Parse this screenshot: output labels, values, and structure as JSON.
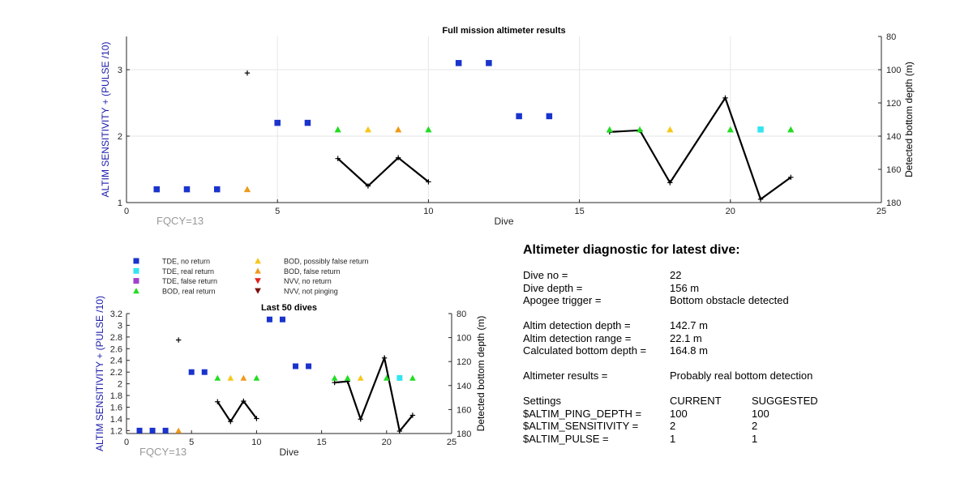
{
  "colors": {
    "tde_no_return": "#1a33cc",
    "tde_real_return": "#33e5ee",
    "tde_false_return": "#a040d0",
    "bod_real_return": "#22dd22",
    "bod_possibly_false": "#f7c71a",
    "bod_false_return": "#ee9a1a",
    "nvv_no_return": "#e02020",
    "nvv_not_pinging": "#7a1010",
    "depth_line": "#000000",
    "left_axis": "#1a1aaa",
    "fqcy_text": "#999999"
  },
  "legend": [
    {
      "key": "tde_no_return",
      "label": "TDE, no return",
      "marker": "square"
    },
    {
      "key": "tde_real_return",
      "label": "TDE, real return",
      "marker": "square"
    },
    {
      "key": "tde_false_return",
      "label": "TDE, false return",
      "marker": "square"
    },
    {
      "key": "bod_real_return",
      "label": "BOD, real return",
      "marker": "triangle-up"
    },
    {
      "key": "bod_possibly_false",
      "label": "BOD, possibly false return",
      "marker": "triangle-up"
    },
    {
      "key": "bod_false_return",
      "label": "BOD, false return",
      "marker": "triangle-up"
    },
    {
      "key": "nvv_no_return",
      "label": "NVV, no return",
      "marker": "triangle-down"
    },
    {
      "key": "nvv_not_pinging",
      "label": "NVV, not pinging",
      "marker": "triangle-down"
    }
  ],
  "chart_data": [
    {
      "type": "scatter",
      "title": "Full mission altimeter results",
      "xlabel": "Dive",
      "ylabel_left": "ALTIM SENSITIVITY + (PULSE /10)",
      "ylabel_right": "Detected bottom depth (m)",
      "xlim": [
        0,
        25
      ],
      "ylim_left": [
        1,
        3.5
      ],
      "ylim_right_reversed": [
        80,
        180
      ],
      "xticks": [
        0,
        5,
        10,
        15,
        20,
        25
      ],
      "yticks_left": [
        1,
        2,
        3
      ],
      "yticks_right": [
        80,
        100,
        120,
        140,
        160,
        180
      ],
      "grid": true,
      "annotation": "FQCY=13",
      "altim_points": [
        {
          "dive": 1,
          "value": 1.2,
          "cat": "tde_no_return"
        },
        {
          "dive": 2,
          "value": 1.2,
          "cat": "tde_no_return"
        },
        {
          "dive": 3,
          "value": 1.2,
          "cat": "tde_no_return"
        },
        {
          "dive": 4,
          "value": 1.2,
          "cat": "bod_false_return"
        },
        {
          "dive": 5,
          "value": 2.2,
          "cat": "tde_no_return"
        },
        {
          "dive": 6,
          "value": 2.2,
          "cat": "tde_no_return"
        },
        {
          "dive": 7,
          "value": 2.1,
          "cat": "bod_real_return"
        },
        {
          "dive": 8,
          "value": 2.1,
          "cat": "bod_possibly_false"
        },
        {
          "dive": 9,
          "value": 2.1,
          "cat": "bod_false_return"
        },
        {
          "dive": 10,
          "value": 2.1,
          "cat": "bod_real_return"
        },
        {
          "dive": 11,
          "value": 3.1,
          "cat": "tde_no_return"
        },
        {
          "dive": 12,
          "value": 3.1,
          "cat": "tde_no_return"
        },
        {
          "dive": 13,
          "value": 2.3,
          "cat": "tde_no_return"
        },
        {
          "dive": 14,
          "value": 2.3,
          "cat": "tde_no_return"
        },
        {
          "dive": 16,
          "value": 2.1,
          "cat": "bod_real_return"
        },
        {
          "dive": 17,
          "value": 2.1,
          "cat": "bod_real_return"
        },
        {
          "dive": 18,
          "value": 2.1,
          "cat": "bod_possibly_false"
        },
        {
          "dive": 20,
          "value": 2.1,
          "cat": "bod_real_return"
        },
        {
          "dive": 21,
          "value": 2.1,
          "cat": "tde_real_return"
        },
        {
          "dive": 22,
          "value": 2.1,
          "cat": "bod_real_return"
        }
      ],
      "depth_isolated": [
        {
          "dive": 4,
          "depth": 102
        }
      ],
      "depth_segments": [
        [
          [
            7,
            153.5
          ],
          [
            8,
            170
          ],
          [
            9,
            153
          ],
          [
            10,
            167.5
          ]
        ],
        [
          [
            16,
            137.5
          ],
          [
            17,
            136.5
          ],
          [
            18,
            168
          ],
          [
            19.83,
            117
          ],
          [
            21,
            178
          ],
          [
            22,
            164.8
          ]
        ]
      ]
    },
    {
      "type": "scatter",
      "title": "Last 50 dives",
      "xlabel": "Dive",
      "ylabel_left": "ALTIM SENSITIVITY + (PULSE /10)",
      "ylabel_right": "Detected bottom depth (m)",
      "xlim": [
        0,
        25
      ],
      "ylim_left": [
        1.15,
        3.2
      ],
      "ylim_right_reversed": [
        80,
        180
      ],
      "xticks": [
        0,
        5,
        10,
        15,
        20,
        25
      ],
      "yticks_left": [
        1.2,
        1.4,
        1.6,
        1.8,
        2,
        2.2,
        2.4,
        2.6,
        2.8,
        3,
        3.2
      ],
      "yticks_right": [
        80,
        100,
        120,
        140,
        160,
        180
      ],
      "grid": false,
      "annotation": "FQCY=13"
    }
  ],
  "diagnostic": {
    "title": "Altimeter diagnostic for latest dive:",
    "dive_no_label": "Dive no =",
    "dive_no_value": "22",
    "dive_depth_label": "Dive depth =",
    "dive_depth_value": "156 m",
    "apogee_label": "Apogee trigger =",
    "apogee_value": "Bottom obstacle detected",
    "altim_depth_label": "Altim detection depth =",
    "altim_depth_value": "142.7 m",
    "altim_range_label": "Altim detection range =",
    "altim_range_value": "22.1 m",
    "calc_depth_label": "Calculated bottom depth =",
    "calc_depth_value": "164.8 m",
    "results_label": "Altimeter results =",
    "results_value": "Probably real bottom detection",
    "settings_label": "Settings",
    "current_header": "CURRENT",
    "suggested_header": "SUGGESTED",
    "settings": [
      {
        "name": "$ALTIM_PING_DEPTH =",
        "current": "100",
        "suggested": "100"
      },
      {
        "name": "$ALTIM_SENSITIVITY =",
        "current": "2",
        "suggested": "2"
      },
      {
        "name": "$ALTIM_PULSE =",
        "current": "1",
        "suggested": "1"
      }
    ]
  }
}
